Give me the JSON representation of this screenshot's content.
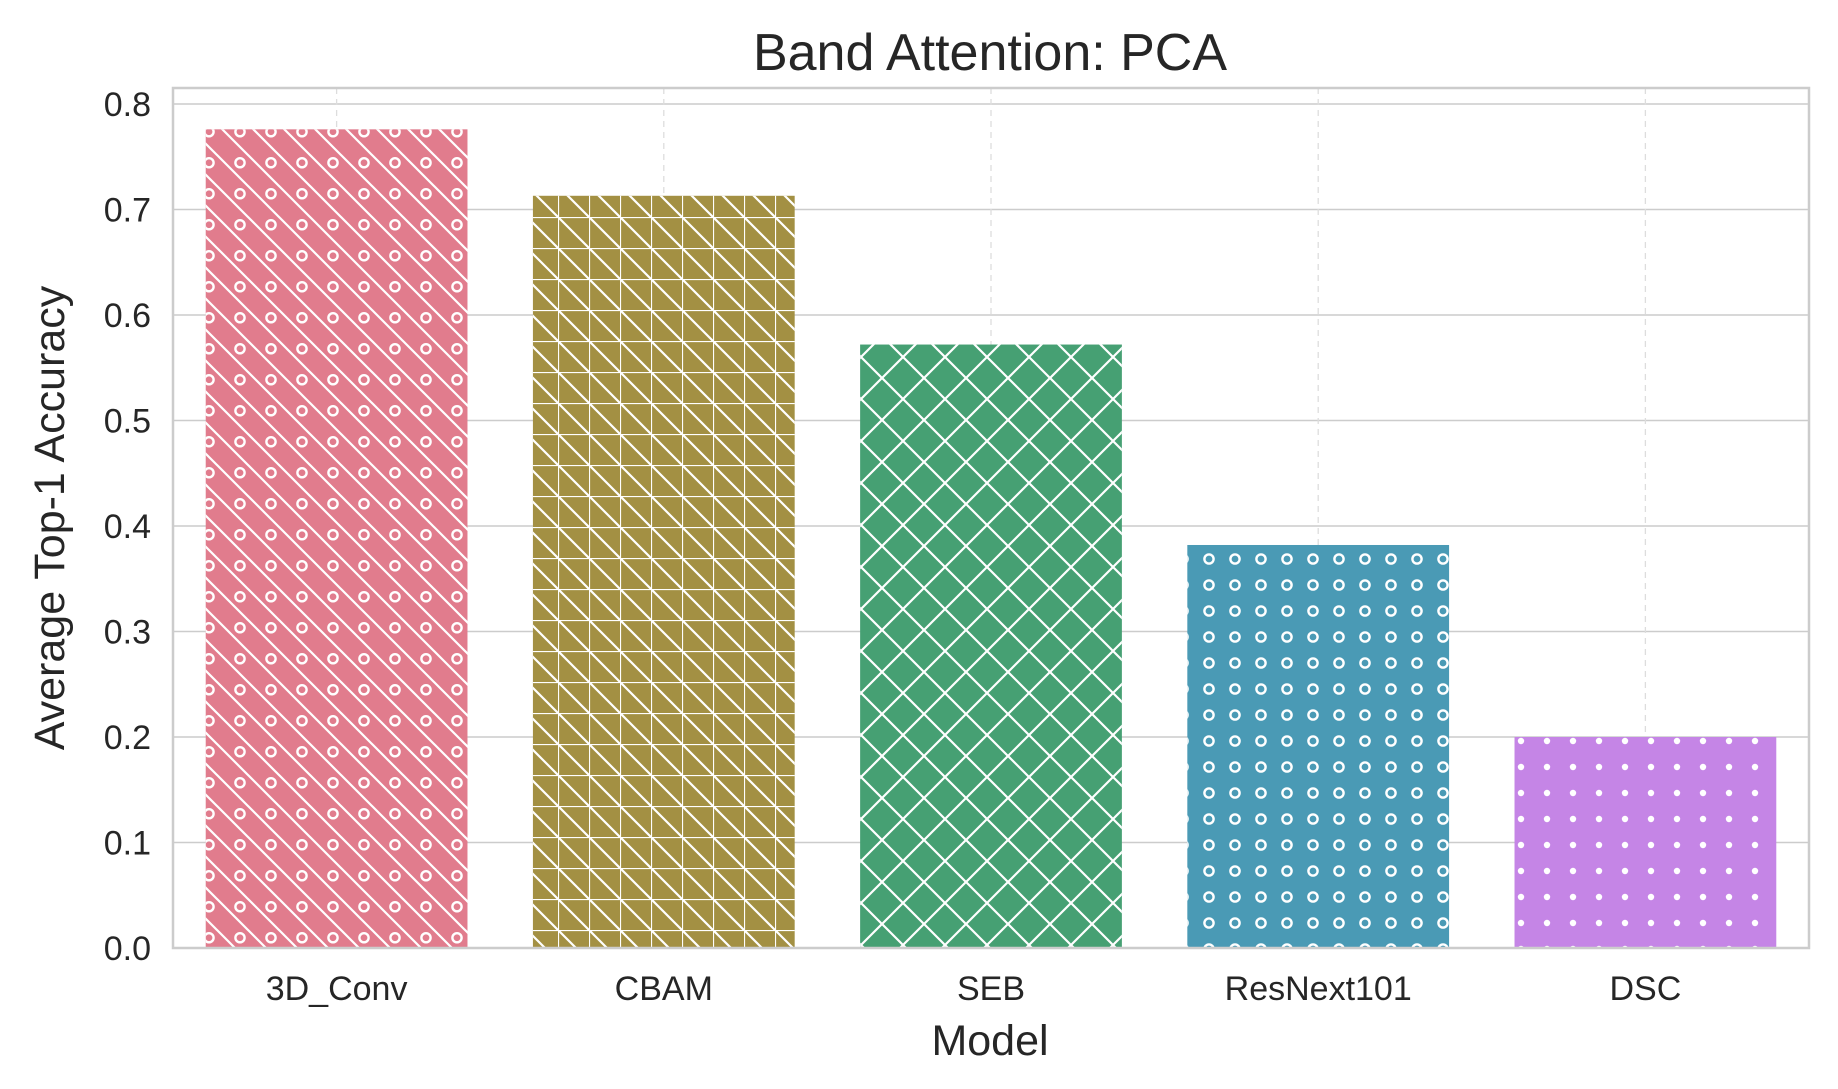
{
  "chart_data": {
    "type": "bar",
    "title": "Band Attention: PCA",
    "xlabel": "Model",
    "ylabel": "Average Top-1 Accuracy",
    "categories": [
      "3D_Conv",
      "CBAM",
      "SEB",
      "ResNext101",
      "DSC"
    ],
    "values": [
      0.776,
      0.713,
      0.572,
      0.382,
      0.2
    ],
    "ylim": [
      0,
      0.82
    ],
    "yticks": [
      "0.0",
      "0.1",
      "0.2",
      "0.3",
      "0.4",
      "0.5",
      "0.6",
      "0.7",
      "0.8"
    ],
    "grid": true,
    "bar_colors": [
      "#e17c8d",
      "#a39043",
      "#46a073",
      "#4a9ab5",
      "#c585e6"
    ],
    "bar_hatches": [
      "diagonal-circles",
      "grid-diagonal",
      "crosshatch",
      "circles",
      "dots"
    ]
  }
}
